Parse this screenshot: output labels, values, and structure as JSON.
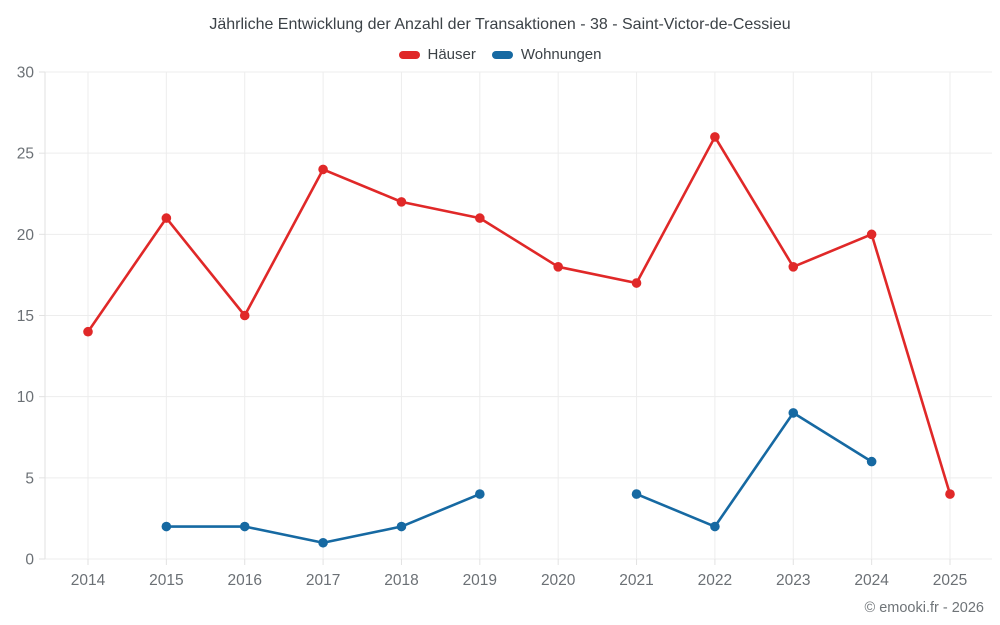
{
  "footer": {
    "copyright": "© emooki.fr - 2026"
  },
  "chart_data": {
    "type": "line",
    "title": "Jährliche Entwicklung der Anzahl der Transaktionen - 38 - Saint-Victor-de-Cessieu",
    "categories": [
      "2014",
      "2015",
      "2016",
      "2017",
      "2018",
      "2019",
      "2020",
      "2021",
      "2022",
      "2023",
      "2024",
      "2025"
    ],
    "series": [
      {
        "name": "Häuser",
        "color": "#e02828",
        "values": [
          14,
          21,
          15,
          24,
          22,
          21,
          18,
          17,
          26,
          18,
          20,
          4
        ]
      },
      {
        "name": "Wohnungen",
        "color": "#1669a2",
        "values": [
          null,
          2,
          2,
          1,
          2,
          4,
          null,
          4,
          2,
          9,
          6,
          null
        ]
      }
    ],
    "xlabel": "",
    "ylabel": "",
    "ylim": [
      0,
      30
    ],
    "y_ticks": [
      0,
      5,
      10,
      15,
      20,
      25,
      30
    ],
    "grid": true,
    "legend_position": "top",
    "colors": {
      "grid": "#ededed",
      "axis": "#e2e2e2",
      "tick_label": "#6b7075",
      "title": "#3c4247",
      "footer": "#6f7478"
    }
  }
}
